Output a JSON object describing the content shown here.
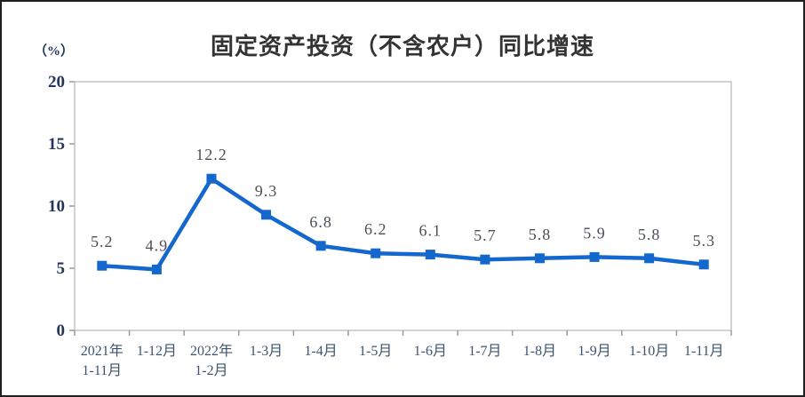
{
  "page": {
    "background": "#ffffff",
    "frame_border_color": "#1f1f1f"
  },
  "chart_data": {
    "type": "line",
    "title": "固定资产投资（不含农户）同比增速",
    "unit_label": "（%）",
    "categories": [
      [
        "2021年",
        "1-11月"
      ],
      [
        "1-12月"
      ],
      [
        "2022年",
        "1-2月"
      ],
      [
        "1-3月"
      ],
      [
        "1-4月"
      ],
      [
        "1-5月"
      ],
      [
        "1-6月"
      ],
      [
        "1-7月"
      ],
      [
        "1-8月"
      ],
      [
        "1-9月"
      ],
      [
        "1-10月"
      ],
      [
        "1-11月"
      ]
    ],
    "values": [
      5.2,
      4.9,
      12.2,
      9.3,
      6.8,
      6.2,
      6.1,
      5.7,
      5.8,
      5.9,
      5.8,
      5.3
    ],
    "data_labels": [
      "5.2",
      "4.9",
      "12.2",
      "9.3",
      "6.8",
      "6.2",
      "6.1",
      "5.7",
      "5.8",
      "5.9",
      "5.8",
      "5.3"
    ],
    "xlabel": "",
    "ylabel": "（%）",
    "ylim": [
      0,
      20
    ],
    "yticks": [
      0,
      5,
      10,
      15,
      20
    ],
    "grid": false,
    "legend": "none",
    "marker": "square",
    "colors": {
      "line": "#1467cd",
      "axis": "#c4c4c4",
      "tick": "#9a9a9a",
      "y_tick_label": "#23355c",
      "x_tick_label": "#3d5470",
      "data_label": "#4a4f58",
      "title": "#333333"
    }
  }
}
